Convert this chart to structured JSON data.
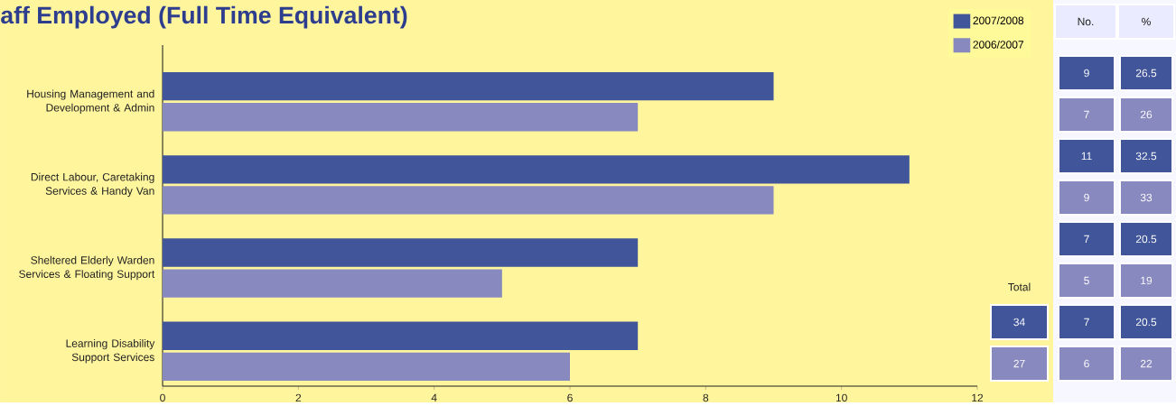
{
  "chart_data": {
    "type": "bar",
    "orientation": "horizontal",
    "title": "aff Employed (Full Time Equivalent)",
    "categories": [
      "Housing Management and Development & Admin",
      "Direct Labour, Caretaking Services & Handy Van",
      "Sheltered Elderly Warden Services & Floating Support",
      "Learning Disability Support Services"
    ],
    "series": [
      {
        "name": "2007/2008",
        "color": "#41559a",
        "values": [
          9,
          11,
          7,
          7
        ]
      },
      {
        "name": "2006/2007",
        "color": "#8889bf",
        "values": [
          7,
          9,
          5,
          6
        ]
      }
    ],
    "xlim": [
      0,
      12
    ],
    "xticks": [
      0,
      2,
      4,
      6,
      8,
      10,
      12
    ],
    "legend": "top right",
    "annotations": [
      "No.",
      "%",
      "9",
      "26.5",
      "7",
      "26",
      "11",
      "32.5",
      "9",
      "33",
      "7",
      "20.5",
      "5",
      "19",
      "7",
      "20.5",
      "6",
      "22",
      "Total",
      "34",
      "27"
    ]
  }
}
